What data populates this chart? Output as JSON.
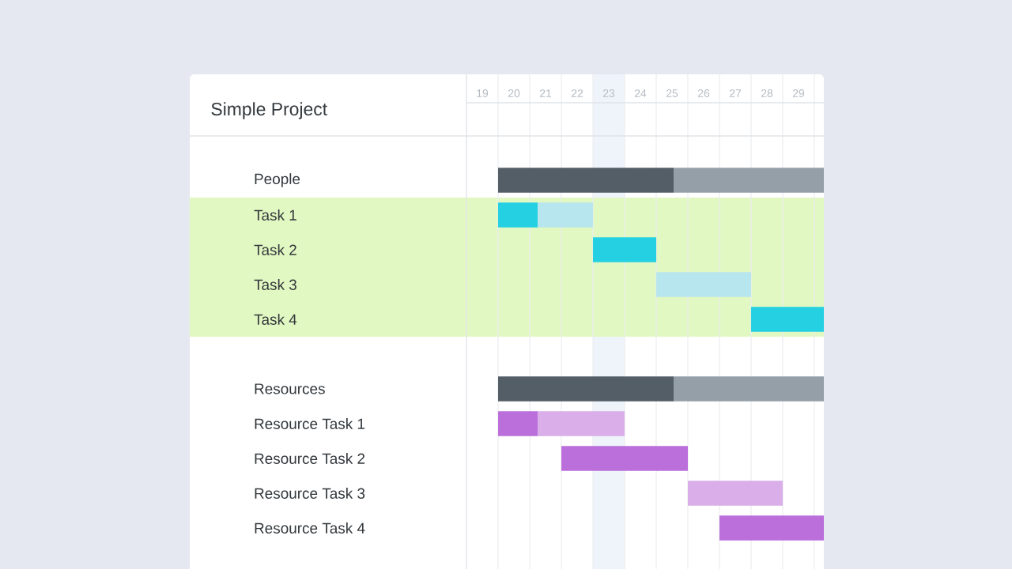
{
  "chart_data": {
    "type": "bar",
    "orientation": "horizontal",
    "title": "Simple Project",
    "categories": [
      "People",
      "Task 1",
      "Task 2",
      "Task 3",
      "Task 4",
      null,
      "Resources",
      "Resource Task 1",
      "Resource Task 2",
      "Resource Task 3",
      "Resource Task 4"
    ],
    "series": [
      {
        "colors": [
          "#545e66",
          "#26d0e3",
          "#26d0e3",
          "#26d0e3",
          "#26d0e3",
          "#545e66",
          "#545e66",
          "#bb6fdb",
          "#bb6fdb",
          "#bb6fdb",
          "#bb6fdb"
        ],
        "base": [
          19.5,
          19.5,
          22.5,
          null,
          27.5,
          null,
          19.5,
          19.5,
          21.5,
          null,
          26.5
        ],
        "values": [
          5.55,
          1.25,
          2,
          null,
          2.3,
          null,
          5.55,
          1.25,
          4,
          null,
          3.3
        ]
      },
      {
        "colors": [
          "#959fa7",
          "#b8e6ee",
          "#b8e6ee",
          "#b8e6ee",
          "#b8e6ee",
          "#959fa7",
          "#959fa7",
          "#d9aee9",
          "#d9aee9",
          "#d9aee9",
          "#d9aee9"
        ],
        "base": [
          25.05,
          20.75,
          null,
          24.5,
          null,
          null,
          25.05,
          20.75,
          null,
          25.5,
          null
        ],
        "values": [
          4.75,
          1.75,
          null,
          3,
          null,
          null,
          4.75,
          2.75,
          null,
          3,
          null
        ]
      }
    ],
    "xlim": [
      18.5,
      29.8
    ],
    "xticks": [
      19,
      20,
      21,
      22,
      23,
      24,
      25,
      26,
      27,
      28,
      29
    ],
    "grid": "x",
    "bands": [
      {
        "axis": "x",
        "from": 22.5,
        "to": 23.5,
        "color": "#eef4fa"
      },
      {
        "axis": "y",
        "from": "Task 1",
        "to": "Task 4",
        "color": "#e2f8c2"
      }
    ]
  }
}
